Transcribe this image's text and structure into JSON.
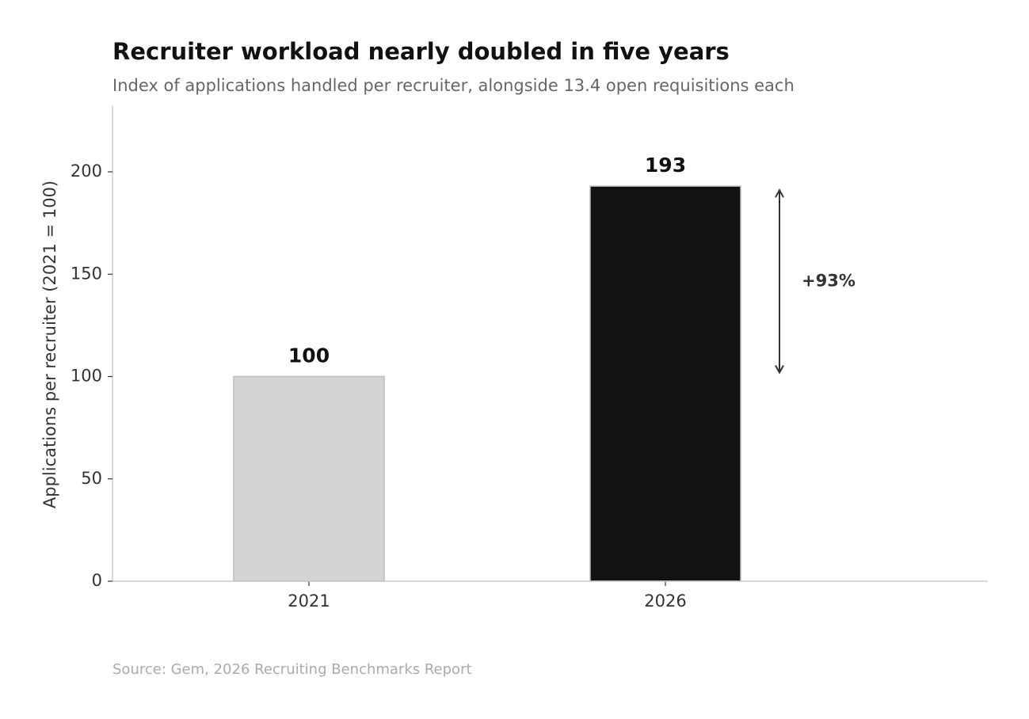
{
  "chart_data": {
    "type": "bar",
    "title": "Recruiter workload nearly doubled in five years",
    "subtitle": "Index of applications handled per recruiter, alongside 13.4 open requisitions each",
    "y_label": "Applications per recruiter (2021 = 100)",
    "categories": [
      "2021",
      "2026"
    ],
    "values": [
      100,
      193
    ],
    "colors": [
      "#d4d4d4",
      "#121212"
    ],
    "ylim": [
      0,
      232.5
    ],
    "yticks": [
      0,
      50,
      100,
      150,
      200
    ],
    "grid": false,
    "annotation": "+93%",
    "source": "Source: Gem, 2026 Recruiting Benchmarks Report"
  }
}
